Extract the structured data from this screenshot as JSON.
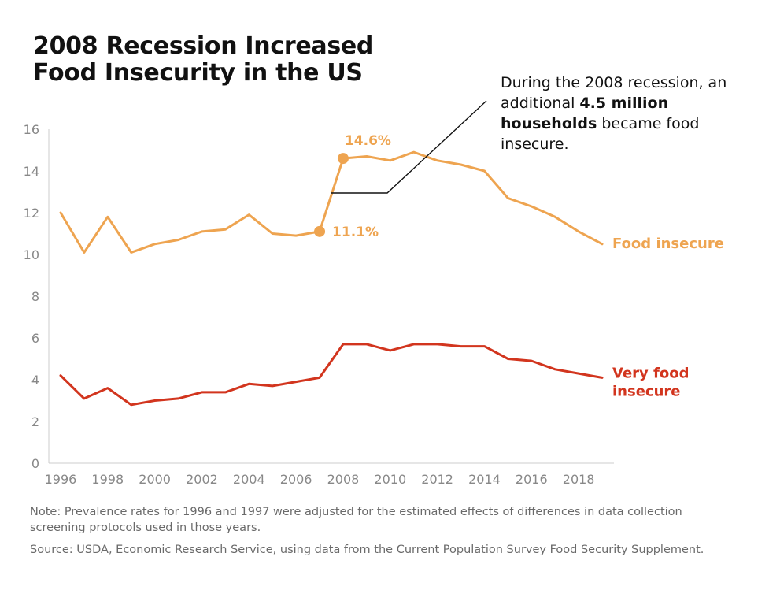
{
  "title_line1": "2008 Recession Increased",
  "title_line2": "Food Insecurity in the US",
  "annotation": {
    "pre": "During the 2008 recession, an additional ",
    "bold1": "4.5 million households",
    "post": " became food insecure."
  },
  "note": "Note: Prevalence rates for 1996 and 1997 were adjusted for the estimated effects of differences in data collection screening protocols used in those years.",
  "source": "Source: USDA, Economic Research Service, using data from the Current Population Survey Food Security Supplement.",
  "colors": {
    "food_insecure": "#EEA450",
    "very_food_insecure": "#D2351E",
    "axis": "#cccccc",
    "tick_text": "#888888",
    "callout_line": "#111111"
  },
  "chart_data": {
    "type": "line",
    "title": "",
    "xlabel": "",
    "ylabel": "",
    "xlim": [
      1995.5,
      2019.5
    ],
    "ylim": [
      0,
      16
    ],
    "x_ticks": [
      "1996",
      "1998",
      "2000",
      "2002",
      "2004",
      "2006",
      "2008",
      "2010",
      "2012",
      "2014",
      "2016",
      "2018"
    ],
    "y_ticks": [
      "0",
      "2",
      "4",
      "6",
      "8",
      "10",
      "12",
      "14",
      "16"
    ],
    "x": [
      1996,
      1997,
      1998,
      1999,
      2000,
      2001,
      2002,
      2003,
      2004,
      2005,
      2006,
      2007,
      2008,
      2009,
      2010,
      2011,
      2012,
      2013,
      2014,
      2015,
      2016,
      2017,
      2018,
      2019
    ],
    "series": [
      {
        "name": "Food insecure",
        "color": "#EEA450",
        "values": [
          12.0,
          10.1,
          11.8,
          10.1,
          10.5,
          10.7,
          11.1,
          11.2,
          11.9,
          11.0,
          10.9,
          11.1,
          14.6,
          14.7,
          14.5,
          14.9,
          14.5,
          14.3,
          14.0,
          12.7,
          12.3,
          11.8,
          11.1,
          10.5
        ],
        "highlights": [
          {
            "x": 2007,
            "y": 11.1,
            "label": "11.1%"
          },
          {
            "x": 2008,
            "y": 14.6,
            "label": "14.6%"
          }
        ]
      },
      {
        "name": "Very food insecure",
        "color": "#D2351E",
        "values": [
          4.2,
          3.1,
          3.6,
          2.8,
          3.0,
          3.1,
          3.4,
          3.4,
          3.8,
          3.7,
          3.9,
          4.1,
          5.7,
          5.7,
          5.4,
          5.7,
          5.7,
          5.6,
          5.6,
          5.0,
          4.9,
          4.5,
          4.3,
          4.1
        ]
      }
    ],
    "series_labels": {
      "food_insecure": "Food insecure",
      "very_food_insecure_line1": "Very food",
      "very_food_insecure_line2": "insecure"
    }
  }
}
